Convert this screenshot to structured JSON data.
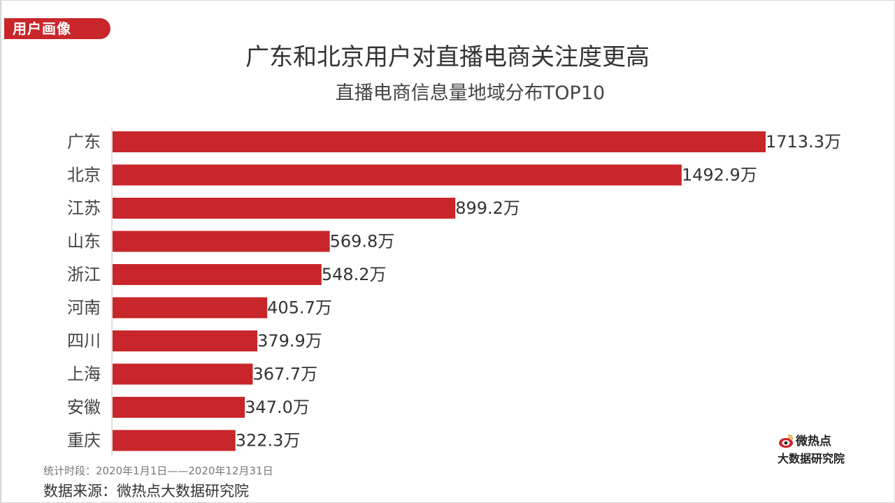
{
  "header": {
    "section_tag": "用户画像",
    "title": "广东和北京用户对直播电商关注度更高",
    "subtitle": "直播电商信息量地域分布TOP10"
  },
  "chart_data": {
    "type": "bar",
    "orientation": "horizontal",
    "title": "直播电商信息量地域分布TOP10",
    "categories": [
      "广东",
      "北京",
      "江苏",
      "山东",
      "浙江",
      "河南",
      "四川",
      "上海",
      "安徽",
      "重庆"
    ],
    "values": [
      1713.3,
      1492.9,
      899.2,
      569.8,
      548.2,
      405.7,
      379.9,
      367.7,
      347.0,
      322.3
    ],
    "value_labels": [
      "1713.3万",
      "1492.9万",
      "899.2万",
      "569.8万",
      "548.2万",
      "405.7万",
      "379.9万",
      "367.7万",
      "347.0万",
      "322.3万"
    ],
    "unit": "万",
    "xlim": [
      0,
      1713.3
    ],
    "bar_color": "#c8262b",
    "grid": false,
    "legend": "none"
  },
  "footer": {
    "period": "统计时段：2020年1月1日——2020年12月31日",
    "source": "数据来源：微热点大数据研究院"
  },
  "brand": {
    "name": "微热点",
    "sub": "大数据研究院",
    "icon": "weibo-eye-icon",
    "color": "#c8262b"
  }
}
